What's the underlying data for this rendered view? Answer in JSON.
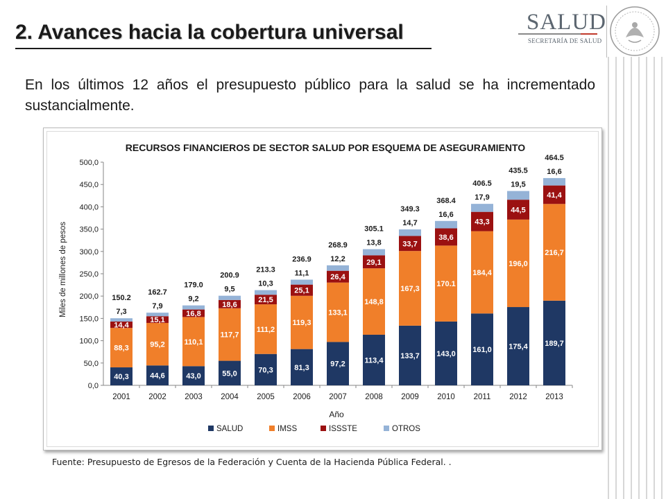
{
  "header": {
    "title": "2. Avances hacia la cobertura universal",
    "logo_main": "SALUD",
    "logo_sub": "SECRETARÍA DE SALUD"
  },
  "intro": "En los últimos 12 años el presupuesto público para la salud se ha incrementado sustancialmente.",
  "source": "Fuente: Presupuesto de Egresos de la Federación y Cuenta de la Hacienda Pública Federal. .",
  "colors": {
    "salud": "#1f3864",
    "imss": "#f07f2a",
    "issste": "#9b1111",
    "otros": "#95b3d7",
    "logo_red": "#c0392b"
  },
  "chart_data": {
    "type": "bar",
    "stacked": true,
    "title": "RECURSOS FINANCIEROS DE SECTOR SALUD POR ESQUEMA DE ASEGURAMIENTO",
    "xlabel": "Año",
    "ylabel": "Miles de millones de pesos",
    "ylim": [
      0,
      500
    ],
    "yticks": [
      "0,0",
      "50,0",
      "100,0",
      "150,0",
      "200,0",
      "250,0",
      "300,0",
      "350,0",
      "400,0",
      "450,0",
      "500,0"
    ],
    "ytick_values": [
      0,
      50,
      100,
      150,
      200,
      250,
      300,
      350,
      400,
      450,
      500
    ],
    "grid": false,
    "legend_position": "bottom",
    "categories": [
      "2001",
      "2002",
      "2003",
      "2004",
      "2005",
      "2006",
      "2007",
      "2008",
      "2009",
      "2010",
      "2011",
      "2012",
      "2013"
    ],
    "series": [
      {
        "name": "SALUD",
        "values": [
          40.3,
          44.6,
          43.0,
          55.0,
          70.3,
          81.3,
          97.2,
          113.4,
          133.7,
          143.0,
          161.0,
          175.4,
          189.7
        ],
        "labels": [
          "40,3",
          "44,6",
          "43,0",
          "55,0",
          "70,3",
          "81,3",
          "97,2",
          "113,4",
          "133,7",
          "143,0",
          "161,0",
          "175,4",
          "189,7"
        ]
      },
      {
        "name": "IMSS",
        "values": [
          88.3,
          95.2,
          110.1,
          117.7,
          111.2,
          119.3,
          133.1,
          148.8,
          167.3,
          170.1,
          184.4,
          196.0,
          216.7
        ],
        "labels": [
          "88,3",
          "95,2",
          "110,1",
          "117,7",
          "111,2",
          "119,3",
          "133,1",
          "148,8",
          "167,3",
          "170.1",
          "184,4",
          "196,0",
          "216,7"
        ]
      },
      {
        "name": "ISSSTE",
        "values": [
          14.4,
          15.1,
          16.8,
          18.6,
          21.5,
          25.1,
          26.4,
          29.1,
          33.7,
          38.6,
          43.3,
          44.5,
          41.4
        ],
        "labels": [
          "14,4",
          "15,1",
          "16,8",
          "18,6",
          "21,5",
          "25,1",
          "26,4",
          "29,1",
          "33,7",
          "38,6",
          "43,3",
          "44,5",
          "41,4"
        ]
      },
      {
        "name": "OTROS",
        "values": [
          7.3,
          7.9,
          9.2,
          9.5,
          10.3,
          11.1,
          12.2,
          13.8,
          14.7,
          16.6,
          17.9,
          19.5,
          16.6
        ],
        "labels": [
          "7,3",
          "7,9",
          "9,2",
          "9,5",
          "10,3",
          "11,1",
          "12,2",
          "13,8",
          "14,7",
          "16,6",
          "17,9",
          "19,5",
          "16,6"
        ]
      }
    ],
    "totals": [
      150.2,
      162.7,
      179.0,
      200.9,
      213.3,
      236.9,
      268.9,
      305.1,
      349.3,
      368.4,
      406.5,
      435.5,
      464.5
    ],
    "total_labels": [
      "150.2",
      "162.7",
      "179.0",
      "200.9",
      "213.3",
      "236.9",
      "268.9",
      "305.1",
      "349.3",
      "368.4",
      "406.5",
      "435.5",
      "464.5"
    ]
  }
}
